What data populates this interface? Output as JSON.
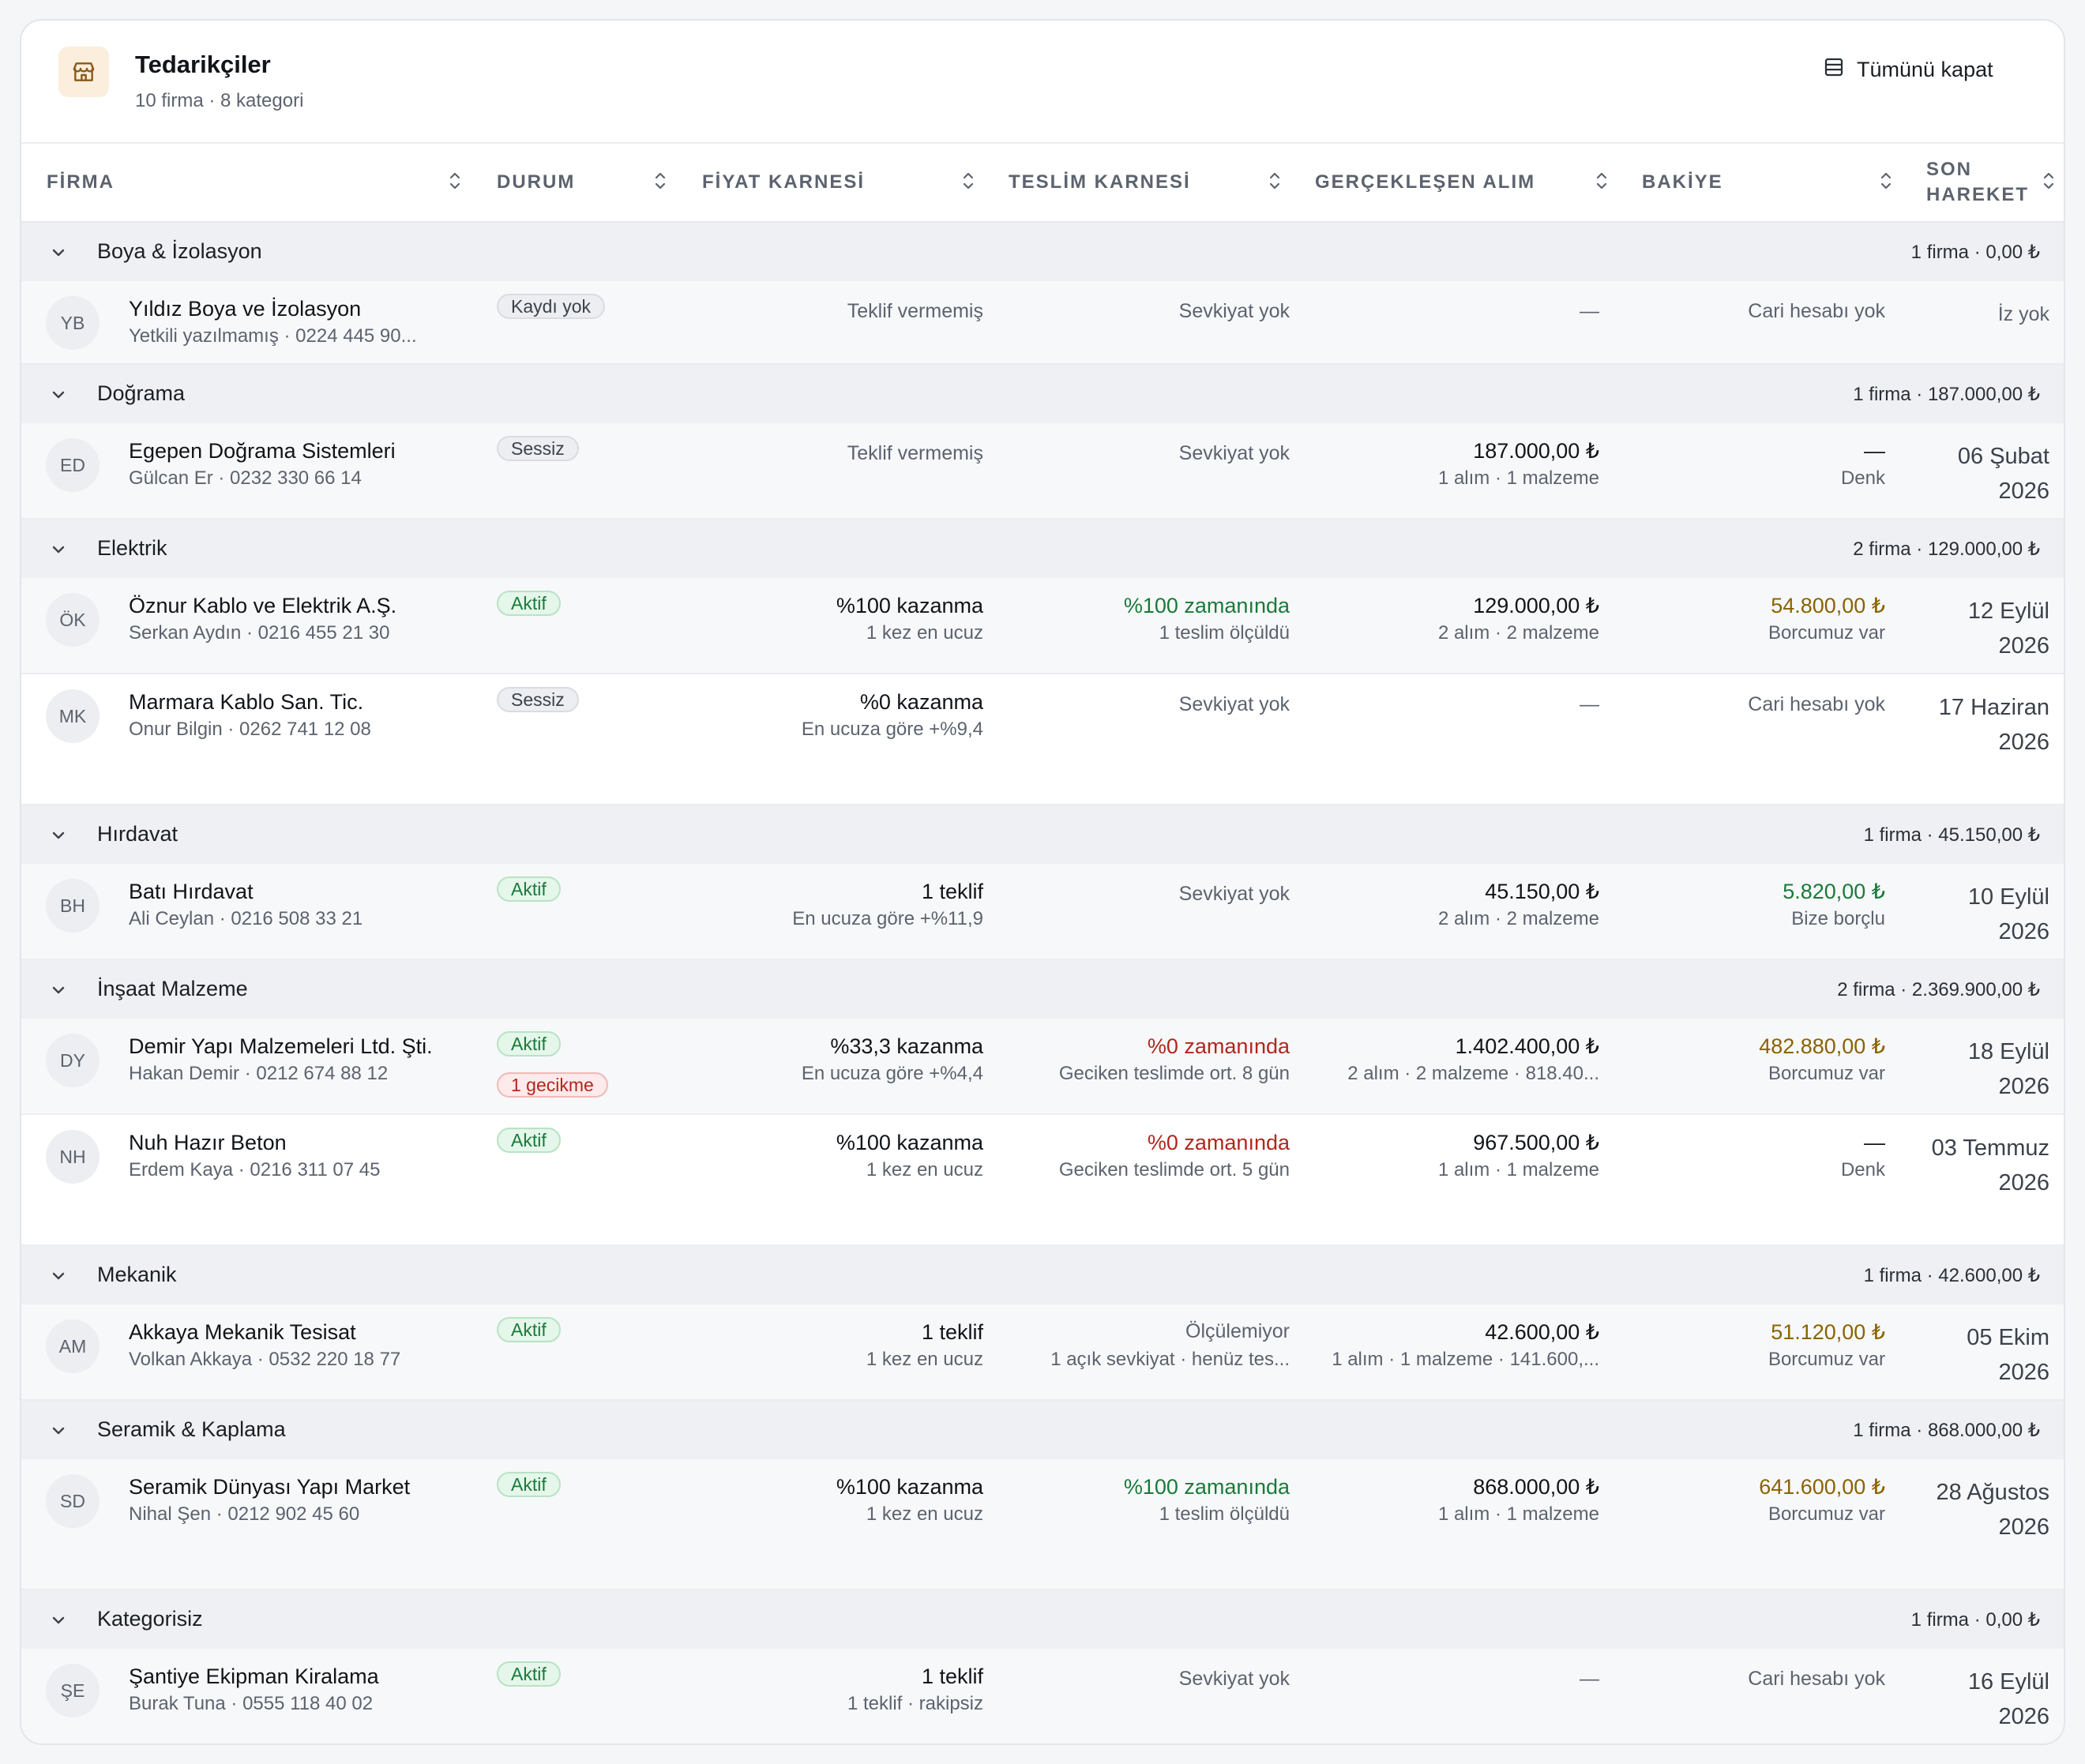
{
  "header": {
    "title": "Tedarikçiler",
    "subtitle": "10 firma · 8 kategori",
    "collapse_label": "Tümünü kapat"
  },
  "columns": [
    {
      "label": "FİRMA"
    },
    {
      "label": "DURUM"
    },
    {
      "label": "FİYAT KARNESİ"
    },
    {
      "label": "TESLİM KARNESİ"
    },
    {
      "label": "GERÇEKLEŞEN ALIM"
    },
    {
      "label": "BAKİYE"
    },
    {
      "label": "SON\nHAREKET"
    }
  ],
  "groups": [
    {
      "name": "Boya & İzolasyon",
      "summary": "1 firma · 0,00 ₺"
    },
    {
      "name": "Doğrama",
      "summary": "1 firma · 187.000,00 ₺"
    },
    {
      "name": "Elektrik",
      "summary": "2 firma · 129.000,00 ₺"
    },
    {
      "name": "Hırdavat",
      "summary": "1 firma · 45.150,00 ₺"
    },
    {
      "name": "İnşaat Malzeme",
      "summary": "2 firma · 2.369.900,00 ₺"
    },
    {
      "name": "Mekanik",
      "summary": "1 firma · 42.600,00 ₺"
    },
    {
      "name": "Seramik & Kaplama",
      "summary": "1 firma · 868.000,00 ₺"
    },
    {
      "name": "Kategorisiz",
      "summary": "1 firma · 0,00 ₺"
    }
  ],
  "suppliers": [
    {
      "initials": "YB",
      "name": "Yıldız Boya ve İzolasyon",
      "contact": "Yetkili yazılmamış · 0224 445 90...",
      "status": "Kaydı yok",
      "price_main": "Teklif vermemiş",
      "price_sub": "",
      "delivery_main": "Sevkiyat yok",
      "delivery_sub": "",
      "purchase_main": "—",
      "purchase_sub": "",
      "balance_main": "Cari hesabı yok",
      "balance_sub": "",
      "last": "İz yok"
    },
    {
      "initials": "ED",
      "name": "Egepen Doğrama Sistemleri",
      "contact": "Gülcan Er · 0232 330 66 14",
      "status": "Sessiz",
      "price_main": "Teklif vermemiş",
      "price_sub": "",
      "delivery_main": "Sevkiyat yok",
      "delivery_sub": "",
      "purchase_main": "187.000,00 ₺",
      "purchase_sub": "1 alım · 1 malzeme",
      "balance_main": "—",
      "balance_sub": "Denk",
      "last": "06 Şubat 2026"
    },
    {
      "initials": "ÖK",
      "name": "Öznur Kablo ve Elektrik A.Ş.",
      "contact": "Serkan Aydın · 0216 455 21 30",
      "status": "Aktif",
      "price_main": "%100 kazanma",
      "price_sub": "1 kez en ucuz",
      "delivery_main": "%100 zamanında",
      "delivery_sub": "1 teslim ölçüldü",
      "purchase_main": "129.000,00 ₺",
      "purchase_sub": "2 alım · 2 malzeme",
      "balance_main": "54.800,00 ₺",
      "balance_sub": "Borcumuz var",
      "last": "12 Eylül 2026"
    },
    {
      "initials": "MK",
      "name": "Marmara Kablo San. Tic.",
      "contact": "Onur Bilgin · 0262 741 12 08",
      "status": "Sessiz",
      "price_main": "%0 kazanma",
      "price_sub": "En ucuza göre +%9,4",
      "delivery_main": "Sevkiyat yok",
      "delivery_sub": "",
      "purchase_main": "—",
      "purchase_sub": "",
      "balance_main": "Cari hesabı yok",
      "balance_sub": "",
      "last": "17 Haziran 2026"
    },
    {
      "initials": "BH",
      "name": "Batı Hırdavat",
      "contact": "Ali Ceylan · 0216 508 33 21",
      "status": "Aktif",
      "price_main": "1 teklif",
      "price_sub": "En ucuza göre +%11,9",
      "delivery_main": "Sevkiyat yok",
      "delivery_sub": "",
      "purchase_main": "45.150,00 ₺",
      "purchase_sub": "2 alım · 2 malzeme",
      "balance_main": "5.820,00 ₺",
      "balance_sub": "Bize borçlu",
      "last": "10 Eylül 2026"
    },
    {
      "initials": "DY",
      "name": "Demir Yapı Malzemeleri Ltd. Şti.",
      "contact": "Hakan Demir · 0212 674 88 12",
      "status": "Aktif",
      "extra_badge": "1 gecikme",
      "price_main": "%33,3 kazanma",
      "price_sub": "En ucuza göre +%4,4",
      "delivery_main": "%0 zamanında",
      "delivery_sub": "Geciken teslimde ort. 8 gün",
      "purchase_main": "1.402.400,00 ₺",
      "purchase_sub": "2 alım · 2 malzeme · 818.40...",
      "balance_main": "482.880,00 ₺",
      "balance_sub": "Borcumuz var",
      "last": "18 Eylül 2026"
    },
    {
      "initials": "NH",
      "name": "Nuh Hazır Beton",
      "contact": "Erdem Kaya · 0216 311 07 45",
      "status": "Aktif",
      "price_main": "%100 kazanma",
      "price_sub": "1 kez en ucuz",
      "delivery_main": "%0 zamanında",
      "delivery_sub": "Geciken teslimde ort. 5 gün",
      "purchase_main": "967.500,00 ₺",
      "purchase_sub": "1 alım · 1 malzeme",
      "balance_main": "—",
      "balance_sub": "Denk",
      "last": "03 Temmuz 2026"
    },
    {
      "initials": "AM",
      "name": "Akkaya Mekanik Tesisat",
      "contact": "Volkan Akkaya · 0532 220 18 77",
      "status": "Aktif",
      "price_main": "1 teklif",
      "price_sub": "1 kez en ucuz",
      "delivery_main": "Ölçülemiyor",
      "delivery_sub": "1 açık sevkiyat · henüz tes...",
      "purchase_main": "42.600,00 ₺",
      "purchase_sub": "1 alım · 1 malzeme · 141.600,...",
      "balance_main": "51.120,00 ₺",
      "balance_sub": "Borcumuz var",
      "last": "05 Ekim 2026"
    },
    {
      "initials": "SD",
      "name": "Seramik Dünyası Yapı Market",
      "contact": "Nihal Şen · 0212 902 45 60",
      "status": "Aktif",
      "price_main": "%100 kazanma",
      "price_sub": "1 kez en ucuz",
      "delivery_main": "%100 zamanında",
      "delivery_sub": "1 teslim ölçüldü",
      "purchase_main": "868.000,00 ₺",
      "purchase_sub": "1 alım · 1 malzeme",
      "balance_main": "641.600,00 ₺",
      "balance_sub": "Borcumuz var",
      "last": "28 Ağustos 2026"
    },
    {
      "initials": "ŞE",
      "name": "Şantiye Ekipman Kiralama",
      "contact": "Burak Tuna · 0555 118 40 02",
      "status": "Aktif",
      "price_main": "1 teklif",
      "price_sub": "1 teklif · rakipsiz",
      "delivery_main": "Sevkiyat yok",
      "delivery_sub": "",
      "purchase_main": "—",
      "purchase_sub": "",
      "balance_main": "Cari hesabı yok",
      "balance_sub": "",
      "last": "16 Eylül 2026"
    }
  ],
  "colors": {
    "green": "#1a7a3a",
    "red": "#b3261e",
    "amber": "#8a6300",
    "badge_bg": "#fbeedd"
  },
  "icons": {
    "header": "storefront-icon",
    "collapse": "table-collapse-icon",
    "group": "chevron-down-icon",
    "sort": "sort-icon"
  }
}
